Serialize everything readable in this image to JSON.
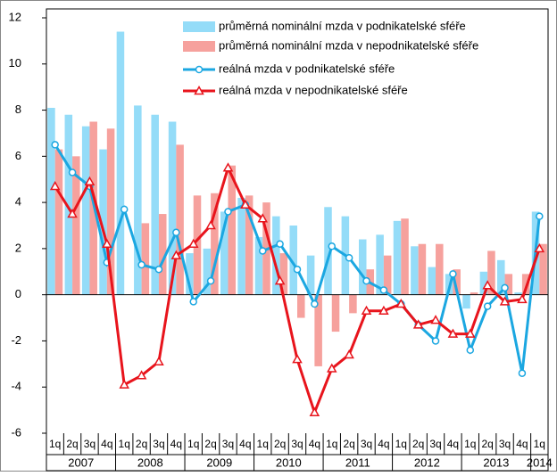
{
  "chart_data": {
    "type": "bar-line",
    "categories": [
      "1q",
      "2q",
      "3q",
      "4q",
      "1q",
      "2q",
      "3q",
      "4q",
      "1q",
      "2q",
      "3q",
      "4q",
      "1q",
      "2q",
      "3q",
      "4q",
      "1q",
      "2q",
      "3q",
      "4q",
      "1q",
      "2q",
      "3q",
      "4q",
      "1q",
      "2q",
      "3q",
      "4q",
      "1q"
    ],
    "years": [
      "2007",
      "2008",
      "2009",
      "2010",
      "2011",
      "2012",
      "2013",
      "2014"
    ],
    "series": [
      {
        "name": "průměrná nominální mzda v podnikatelské sféře",
        "kind": "bar",
        "color": "#94dcf8",
        "values": [
          8.1,
          7.8,
          7.3,
          6.3,
          11.4,
          8.2,
          7.8,
          7.5,
          1.8,
          2.0,
          3.6,
          4.2,
          2.5,
          3.4,
          3.0,
          1.7,
          3.8,
          3.4,
          2.4,
          2.6,
          3.2,
          2.1,
          1.2,
          0.9,
          -0.6,
          1.0,
          1.5,
          0.1,
          3.6
        ]
      },
      {
        "name": "průměrná nominální mzda v nepodnikatelské sféře",
        "kind": "bar",
        "color": "#f6a19d",
        "values": [
          6.3,
          6.0,
          7.5,
          7.2,
          0,
          3.1,
          3.5,
          6.5,
          4.3,
          4.4,
          5.6,
          4.3,
          4.0,
          1.8,
          -1.0,
          -3.1,
          -1.6,
          -0.8,
          1.1,
          1.7,
          3.3,
          2.2,
          2.2,
          1.1,
          0.1,
          1.9,
          0.9,
          0.9,
          2.2
        ]
      },
      {
        "name": "reálná mzda v podnikatelské sféře",
        "kind": "line",
        "marker": "circle",
        "color": "#1ba7e1",
        "values": [
          6.5,
          5.3,
          4.7,
          1.4,
          3.7,
          1.3,
          1.1,
          2.7,
          -0.3,
          0.6,
          3.6,
          3.9,
          1.9,
          2.2,
          1.1,
          -0.4,
          2.1,
          1.6,
          0.6,
          0.2,
          -0.4,
          -1.3,
          -2.0,
          0.9,
          -2.4,
          -0.5,
          0.3,
          -3.4,
          3.4
        ]
      },
      {
        "name": "reálná mzda v nepodnikatelské sféře",
        "kind": "line",
        "marker": "triangle",
        "color": "#e8141c",
        "values": [
          4.7,
          3.5,
          4.9,
          2.2,
          -3.9,
          -3.5,
          -2.9,
          1.7,
          2.2,
          3.0,
          5.5,
          3.9,
          3.3,
          0.6,
          -2.8,
          -5.1,
          -3.2,
          -2.6,
          -0.7,
          -0.7,
          -0.4,
          -1.3,
          -1.1,
          -1.7,
          -1.7,
          0.4,
          -0.3,
          -0.2,
          2.0
        ]
      }
    ],
    "ylim": [
      -6,
      12
    ],
    "yticks": [
      -6,
      -4,
      -2,
      0,
      2,
      4,
      6,
      8,
      10,
      12
    ],
    "grid": false,
    "legend": "top-right"
  }
}
